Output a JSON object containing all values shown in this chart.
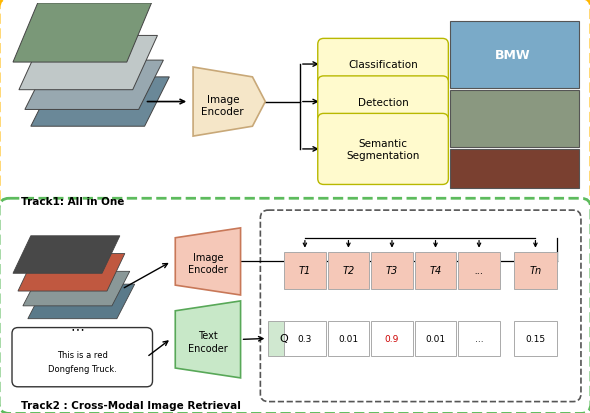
{
  "fig_width": 5.9,
  "fig_height": 4.14,
  "dpi": 100,
  "bg_color": "#ffffff",
  "track1_dash_color": "#FFB700",
  "track2_dash_color": "#5DBB5D",
  "encoder1_color": "#F5E6C8",
  "encoder1_edge": "#C8A878",
  "encoder2_img_color": "#F5C8B8",
  "encoder2_img_edge": "#C87858",
  "encoder2_txt_color": "#C8E8C8",
  "encoder2_txt_edge": "#58A858",
  "task_box_color": "#FFFACD",
  "task_box_edge": "#B8B800",
  "retrieval_t_color": "#F5C8B8",
  "retrieval_q_color": "#ffffff",
  "query_cell_color": "#D0E8D0",
  "text_color": "#000000",
  "red_text_color": "#CC0000",
  "track1_label": "Track1: All in One",
  "track2_label": "Track2 : Cross-Modal Image Retrieval",
  "tasks": [
    "Classification",
    "Detection",
    "Semantic\nSegmentation"
  ],
  "t_labels": [
    "T1",
    "T2",
    "T3",
    "T4",
    "...",
    "Tn"
  ],
  "q_values": [
    "0.3",
    "0.01",
    "0.9",
    "0.01",
    "...",
    "0.15"
  ]
}
